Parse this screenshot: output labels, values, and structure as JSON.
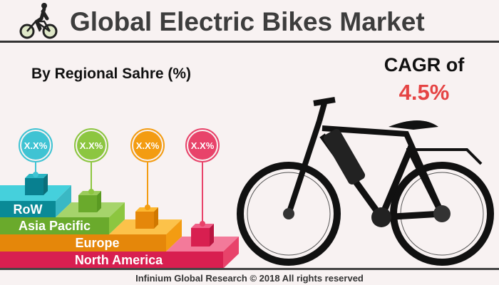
{
  "header": {
    "title": "Global Electric Bikes Market",
    "icon": "cyclist-icon"
  },
  "subtitle": "By Regional Sahre (%)",
  "cagr": {
    "label": "CAGR of",
    "value": "4.5%",
    "color": "#e54444"
  },
  "regions": [
    {
      "name": "RoW",
      "value": "X.X%",
      "color": "#0a8a96",
      "top_color": "#45d0dc",
      "bubble_color": "#3fc3d3"
    },
    {
      "name": "Asia Pacific",
      "value": "X.X%",
      "color": "#6aaa2c",
      "top_color": "#a6d46b",
      "bubble_color": "#8cc640"
    },
    {
      "name": "Europe",
      "value": "X.X%",
      "color": "#e5870a",
      "top_color": "#fcc24a",
      "bubble_color": "#f39c12"
    },
    {
      "name": "North America",
      "value": "X.X%",
      "color": "#d81f50",
      "top_color": "#f37a9a",
      "bubble_color": "#e8436a"
    }
  ],
  "footer": "Infinium Global Research © 2018 All rights reserved"
}
